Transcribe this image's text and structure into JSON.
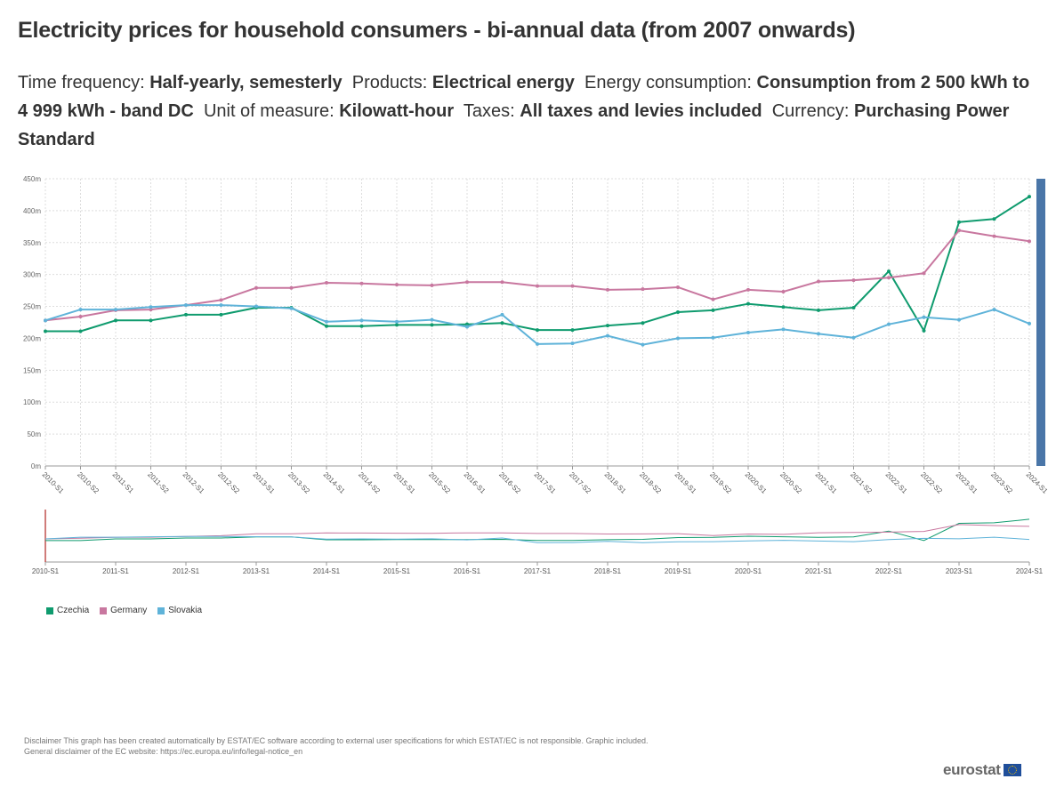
{
  "title": "Electricity prices for household consumers - bi-annual data (from 2007 onwards)",
  "subtitle": {
    "frequency_label": "Time frequency:",
    "frequency_value": "Half-yearly, semesterly",
    "products_label": "Products:",
    "products_value": "Electrical energy",
    "consumption_label": "Energy consumption:",
    "consumption_value": "Consumption from 2 500 kWh to 4 999 kWh - band DC",
    "unit_label": "Unit of measure:",
    "unit_value": "Kilowatt-hour",
    "taxes_label": "Taxes:",
    "taxes_value": "All taxes and levies included",
    "currency_label": "Currency:",
    "currency_value": "Purchasing Power Standard"
  },
  "colors": {
    "czechia": "#0f9b6e",
    "germany": "#c8779f",
    "slovakia": "#5fb3d9",
    "scrollbar": "#4a76a8",
    "grid": "#dddddd"
  },
  "chart_data": {
    "type": "line",
    "categories": [
      "2010-S1",
      "2010-S2",
      "2011-S1",
      "2011-S2",
      "2012-S1",
      "2012-S2",
      "2013-S1",
      "2013-S2",
      "2014-S1",
      "2014-S2",
      "2015-S1",
      "2015-S2",
      "2016-S1",
      "2016-S2",
      "2017-S1",
      "2017-S2",
      "2018-S1",
      "2018-S2",
      "2019-S1",
      "2019-S2",
      "2020-S1",
      "2020-S2",
      "2021-S1",
      "2021-S2",
      "2022-S1",
      "2022-S2",
      "2023-S1",
      "2023-S2",
      "2024-S1"
    ],
    "series": [
      {
        "name": "Czechia",
        "color_key": "czechia",
        "values": [
          0.211,
          0.211,
          0.228,
          0.228,
          0.237,
          0.237,
          0.248,
          0.248,
          0.219,
          0.219,
          0.221,
          0.221,
          0.222,
          0.224,
          0.213,
          0.213,
          0.22,
          0.224,
          0.241,
          0.244,
          0.254,
          0.249,
          0.244,
          0.248,
          0.305,
          0.212,
          0.382,
          0.387,
          0.422
        ]
      },
      {
        "name": "Germany",
        "color_key": "germany",
        "values": [
          0.228,
          0.234,
          0.244,
          0.245,
          0.252,
          0.26,
          0.279,
          0.279,
          0.287,
          0.286,
          0.284,
          0.283,
          0.288,
          0.288,
          0.282,
          0.282,
          0.276,
          0.277,
          0.28,
          0.261,
          0.276,
          0.273,
          0.289,
          0.291,
          0.295,
          0.302,
          0.369,
          0.36,
          0.352
        ]
      },
      {
        "name": "Slovakia",
        "color_key": "slovakia",
        "values": [
          0.228,
          0.245,
          0.245,
          0.249,
          0.252,
          0.252,
          0.25,
          0.247,
          0.226,
          0.228,
          0.226,
          0.229,
          0.218,
          0.237,
          0.191,
          0.192,
          0.204,
          0.19,
          0.2,
          0.201,
          0.209,
          0.214,
          0.207,
          0.201,
          0.222,
          0.233,
          0.229,
          0.245,
          0.223
        ]
      }
    ],
    "yticks": [
      "0m",
      "50m",
      "100m",
      "150m",
      "200m",
      "250m",
      "300m",
      "350m",
      "400m",
      "450m"
    ],
    "ylim": [
      0,
      0.45
    ],
    "ytick_step": 0.05,
    "navigator_labels": [
      "2010-S1",
      "2011-S1",
      "2012-S1",
      "2013-S1",
      "2014-S1",
      "2015-S1",
      "2016-S1",
      "2017-S1",
      "2018-S1",
      "2019-S1",
      "2020-S1",
      "2021-S1",
      "2022-S1",
      "2023-S1",
      "2024-S1"
    ],
    "legend_position": "bottom-left",
    "grid": true
  },
  "legend": [
    "Czechia",
    "Germany",
    "Slovakia"
  ],
  "disclaimer": {
    "line1": "Disclaimer This graph has been created automatically by ESTAT/EC software according to external user specifications for which ESTAT/EC is not responsible. Graphic included.",
    "line2": "General disclaimer of the EC website: https://ec.europa.eu/info/legal-notice_en"
  },
  "logo_text": "eurostat"
}
